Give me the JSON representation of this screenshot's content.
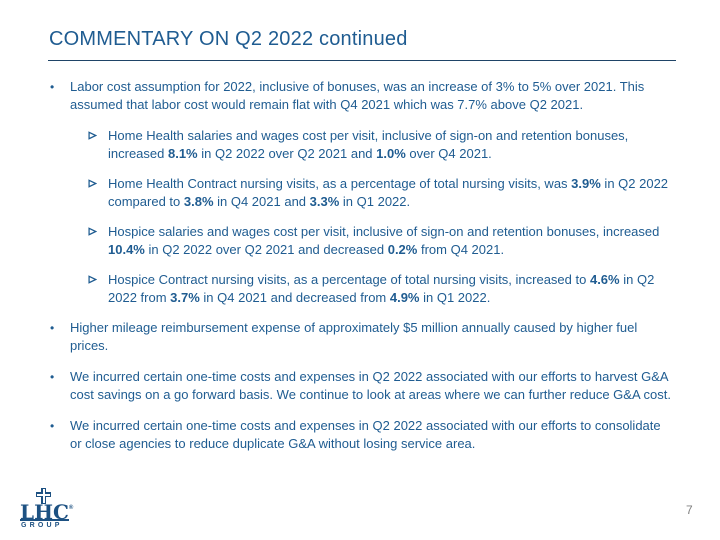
{
  "slide": {
    "title": "COMMENTARY ON Q2 2022 continued",
    "page_number": "7",
    "colors": {
      "body_text_blue": "#1F5C91",
      "title_blue": "#1F5C91",
      "rule_blue": "#1F4467",
      "logo_blue": "#1D5182",
      "page_number_gray": "#7F7F7F",
      "background": "#FFFFFF"
    },
    "markers": {
      "dot": "•"
    },
    "bullets": [
      {
        "level": 1,
        "marker": "dot-bullet-icon",
        "segments": [
          {
            "text": "Labor cost assumption for 2022, inclusive of bonuses, was an increase of 3% to 5% over 2021. This assumed that labor cost would remain flat with Q4 2021 which was 7.7% above Q2 2021.",
            "bold": false
          }
        ]
      },
      {
        "level": 2,
        "marker": "arrowhead-bullet-icon",
        "segments": [
          {
            "text": "Home Health salaries and wages cost per visit, inclusive of sign-on and retention bonuses, increased ",
            "bold": false
          },
          {
            "text": "8.1%",
            "bold": true
          },
          {
            "text": " in Q2 2022 over Q2 2021 and ",
            "bold": false
          },
          {
            "text": "1.0%",
            "bold": true
          },
          {
            "text": " over Q4 2021.",
            "bold": false
          }
        ]
      },
      {
        "level": 2,
        "marker": "arrowhead-bullet-icon",
        "segments": [
          {
            "text": "Home Health Contract nursing visits, as a percentage of total nursing visits, was ",
            "bold": false
          },
          {
            "text": "3.9%",
            "bold": true
          },
          {
            "text": " in Q2 2022 compared to ",
            "bold": false
          },
          {
            "text": "3.8%",
            "bold": true
          },
          {
            "text": " in Q4 2021 and ",
            "bold": false
          },
          {
            "text": "3.3%",
            "bold": true
          },
          {
            "text": " in Q1 2022.",
            "bold": false
          }
        ]
      },
      {
        "level": 2,
        "marker": "arrowhead-bullet-icon",
        "segments": [
          {
            "text": "Hospice salaries and wages cost per visit, inclusive of sign-on and retention bonuses, increased ",
            "bold": false
          },
          {
            "text": "10.4%",
            "bold": true
          },
          {
            "text": " in Q2 2022 over Q2 2021 and decreased ",
            "bold": false
          },
          {
            "text": "0.2%",
            "bold": true
          },
          {
            "text": " from Q4 2021.",
            "bold": false
          }
        ]
      },
      {
        "level": 2,
        "marker": "arrowhead-bullet-icon",
        "segments": [
          {
            "text": "Hospice Contract nursing visits, as a percentage of total nursing visits, increased to ",
            "bold": false
          },
          {
            "text": "4.6%",
            "bold": true
          },
          {
            "text": " in Q2 2022 from ",
            "bold": false
          },
          {
            "text": "3.7%",
            "bold": true
          },
          {
            "text": " in Q4 2021 and decreased from ",
            "bold": false
          },
          {
            "text": "4.9%",
            "bold": true
          },
          {
            "text": " in Q1 2022.",
            "bold": false
          }
        ]
      },
      {
        "level": 1,
        "marker": "dot-bullet-icon",
        "segments": [
          {
            "text": "Higher mileage reimbursement expense of approximately $5 million annually caused by higher fuel prices.",
            "bold": false
          }
        ]
      },
      {
        "level": 1,
        "marker": "dot-bullet-icon",
        "segments": [
          {
            "text": "We incurred certain one-time costs and expenses in Q2 2022 associated with our efforts to harvest G&A cost savings on a go forward basis. We continue to look at areas where we can further reduce G&A cost.",
            "bold": false
          }
        ]
      },
      {
        "level": 1,
        "marker": "dot-bullet-icon",
        "segments": [
          {
            "text": "We incurred certain one-time costs and expenses in Q2 2022 associated with our efforts to consolidate or close agencies to reduce duplicate G&A without losing service area.",
            "bold": false
          }
        ]
      }
    ],
    "logo": {
      "name": "LHC Group",
      "wordmark": "LHC",
      "registered_mark": "®",
      "subtext": "GROUP",
      "icon": "medical-cross-icon"
    }
  }
}
